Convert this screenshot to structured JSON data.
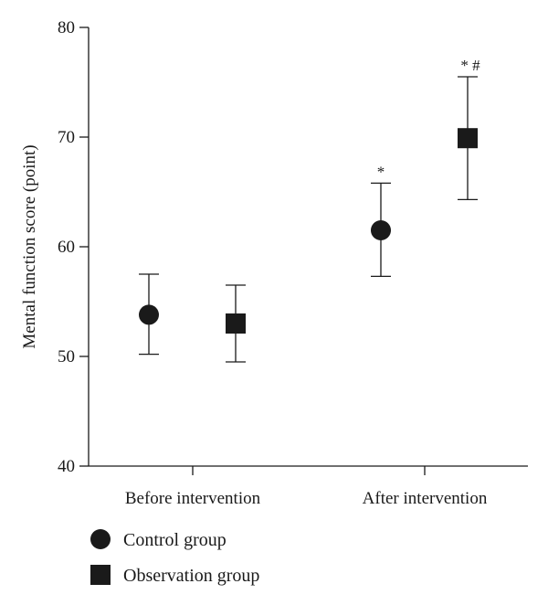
{
  "chart_data": {
    "type": "scatter",
    "title": "",
    "xlabel": "",
    "ylabel": "Mental function score (point)",
    "ylim": [
      40,
      80
    ],
    "yticks": [
      40,
      50,
      60,
      70,
      80
    ],
    "grid": false,
    "legend_position": "bottom-left",
    "categories": [
      "Before intervention",
      "After intervention"
    ],
    "series": [
      {
        "name": "Control group",
        "marker": "circle",
        "color": "#1a1a1a",
        "values": [
          53.8,
          61.5
        ],
        "error_low": [
          50.2,
          57.3
        ],
        "error_high": [
          57.5,
          65.8
        ],
        "annotations": [
          "",
          "*"
        ]
      },
      {
        "name": "Observation group",
        "marker": "square",
        "color": "#1a1a1a",
        "values": [
          53.0,
          69.9
        ],
        "error_low": [
          49.5,
          64.3
        ],
        "error_high": [
          56.5,
          75.5
        ],
        "annotations": [
          "",
          "* #"
        ]
      }
    ]
  }
}
